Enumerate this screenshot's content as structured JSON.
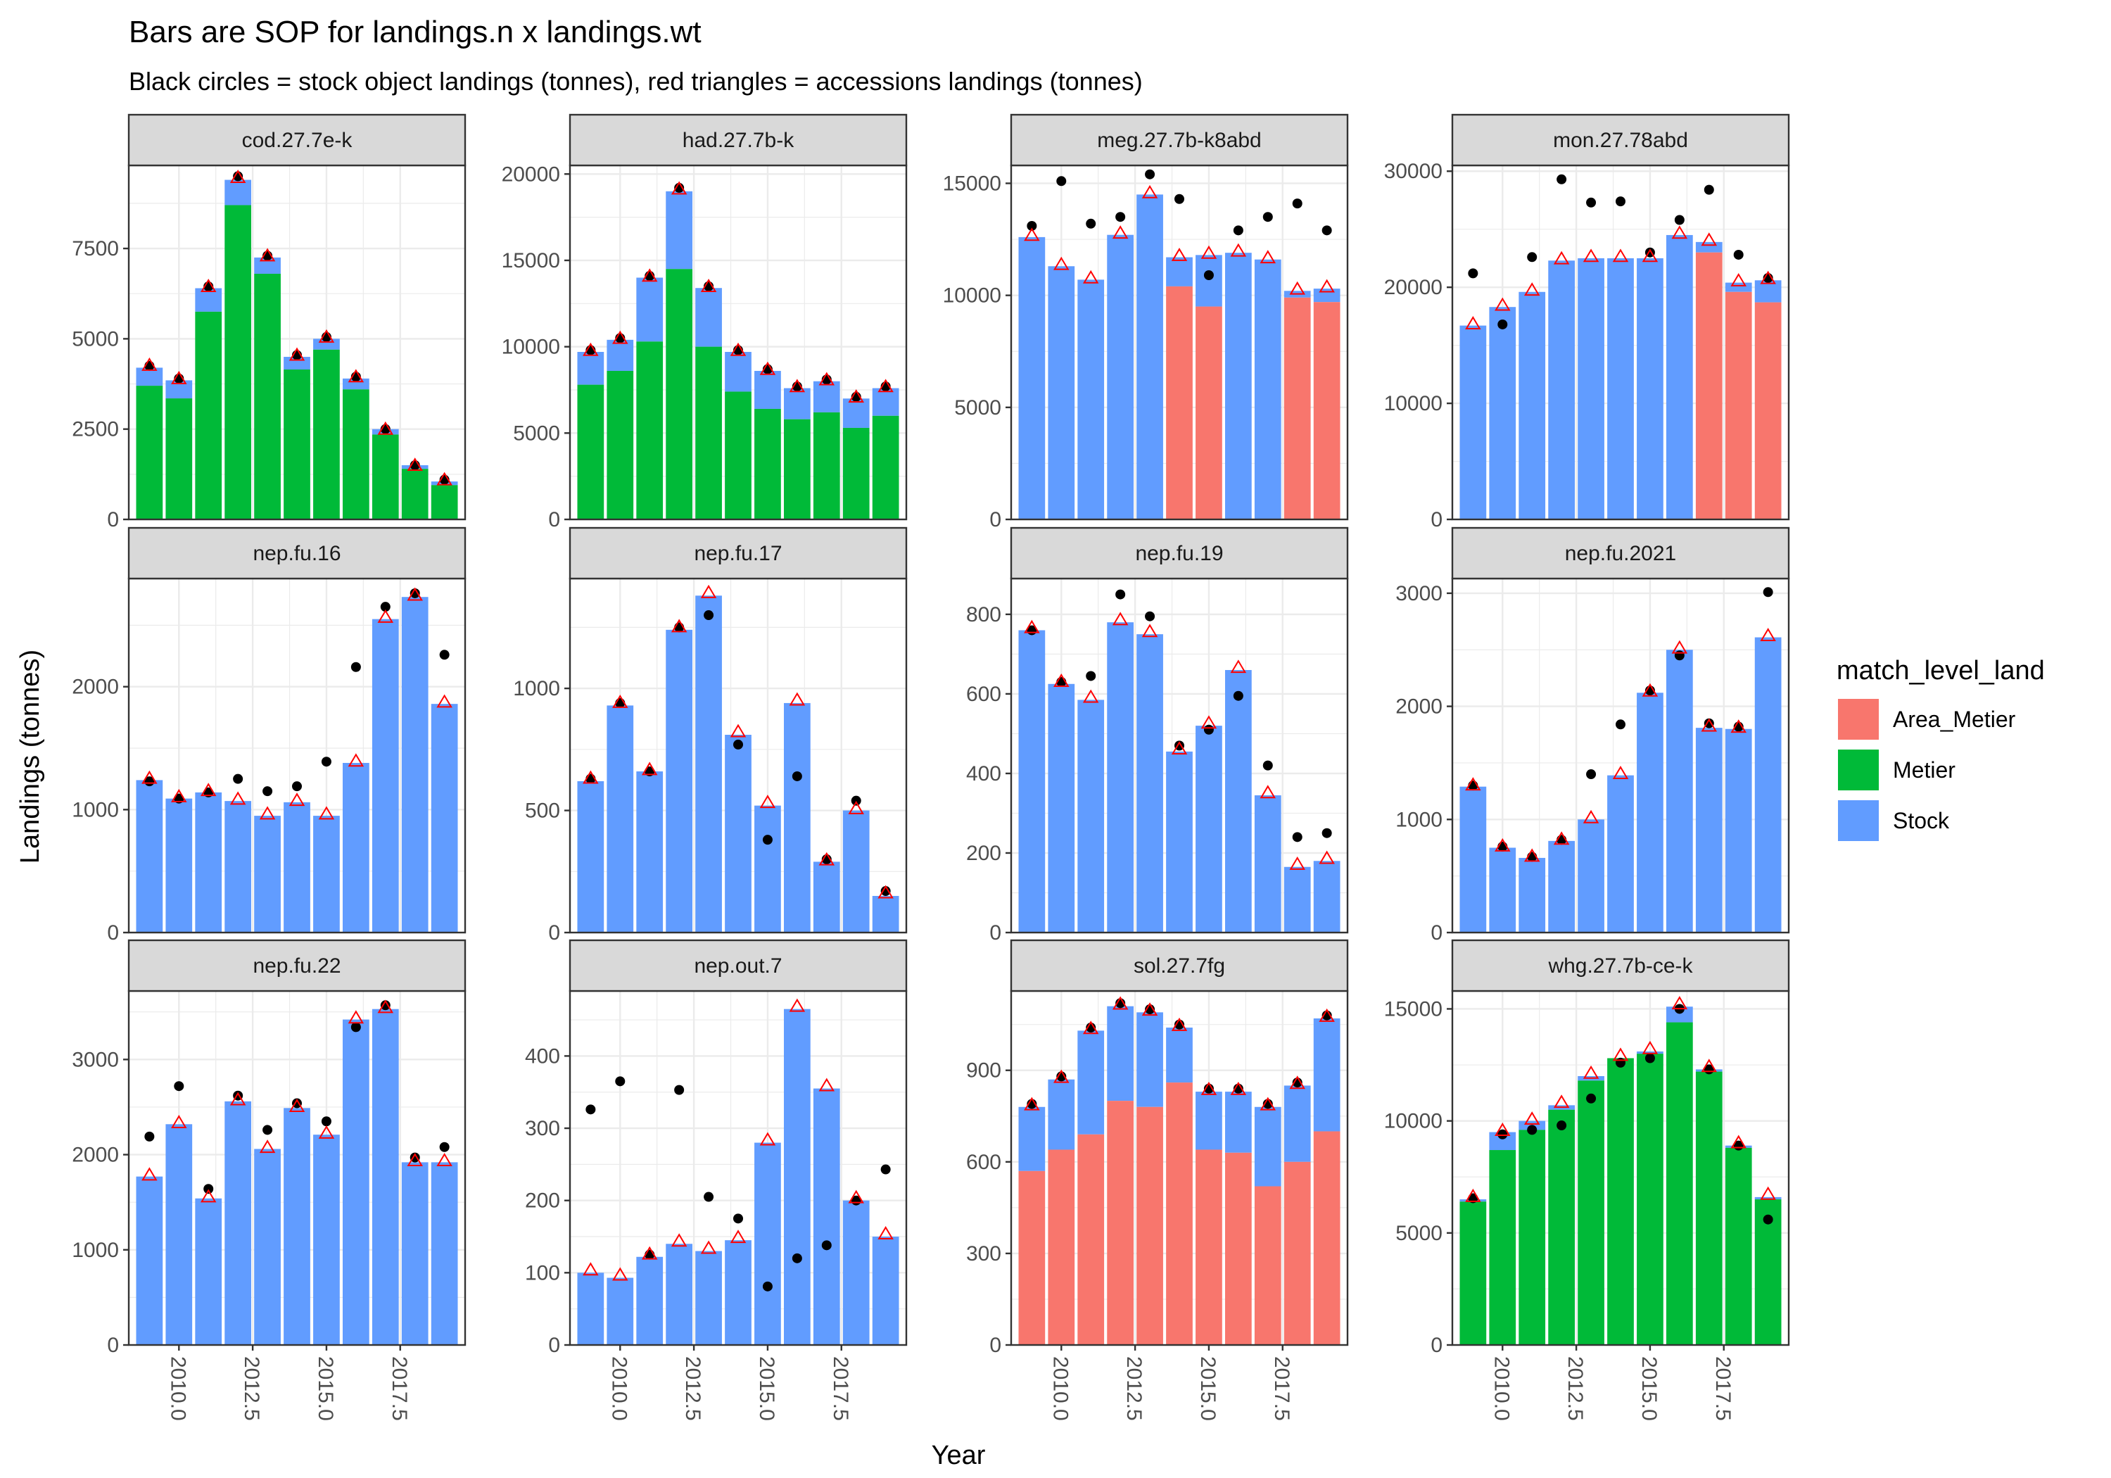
{
  "chart_data": {
    "type": "bar",
    "title": "Bars are SOP for landings.n x landings.wt",
    "subtitle": "Black circles = stock object landings (tonnes), red triangles = accessions landings (tonnes)",
    "xlabel": "Year",
    "ylabel": "Landings (tonnes)",
    "grid": true,
    "legend": {
      "title": "match_level_land",
      "placement": "right",
      "entries": [
        {
          "name": "Area_Metier",
          "color": "#F8766D"
        },
        {
          "name": "Metier",
          "color": "#00BA38"
        },
        {
          "name": "Stock",
          "color": "#619CFF"
        }
      ]
    },
    "x_tick_labels": [
      "2010.0",
      "2012.5",
      "2015.0",
      "2017.5"
    ],
    "x_ticks": [
      2010,
      2012.5,
      2015,
      2017.5
    ],
    "x_range": [
      2008.3,
      2019.7
    ],
    "years": [
      2009,
      2010,
      2011,
      2012,
      2013,
      2014,
      2015,
      2016,
      2017,
      2018,
      2019
    ],
    "colors": {
      "Area_Metier": "#F8766D",
      "Metier": "#00BA38",
      "Stock": "#619CFF",
      "circle": "#000000",
      "triangle": "#FF0000",
      "strip_bg": "#D9D9D9",
      "grid": "#EBEBEB"
    },
    "panels": [
      {
        "name": "cod.27.7e-k",
        "ylim": [
          0,
          9800
        ],
        "yticks": [
          0,
          2500,
          5000,
          7500
        ],
        "ytick_labels": [
          "0",
          "2500",
          "5000",
          "7500"
        ],
        "total": [
          4200,
          3850,
          6400,
          9400,
          7250,
          4500,
          5000,
          3900,
          2500,
          1500,
          1050
        ],
        "split_value": [
          3700,
          3350,
          5750,
          8700,
          6800,
          4150,
          4700,
          3600,
          2350,
          1400,
          950
        ],
        "split_type": "Metier",
        "circles": [
          4250,
          3900,
          6450,
          9500,
          7300,
          4550,
          5050,
          3950,
          2500,
          1500,
          1100
        ],
        "triangles": [
          4250,
          3880,
          6430,
          9450,
          7280,
          4530,
          5030,
          3930,
          2480,
          1480,
          1080
        ]
      },
      {
        "name": "had.27.7b-k",
        "ylim": [
          0,
          20500
        ],
        "yticks": [
          0,
          5000,
          10000,
          15000,
          20000
        ],
        "ytick_labels": [
          "0",
          "5000",
          "10000",
          "15000",
          "20000"
        ],
        "total": [
          9700,
          10400,
          14000,
          19000,
          13400,
          9700,
          8600,
          7600,
          8000,
          7000,
          7600
        ],
        "split_value": [
          7800,
          8600,
          10300,
          14500,
          10000,
          7400,
          6400,
          5800,
          6200,
          5300,
          6000
        ],
        "split_type": "Metier",
        "circles": [
          9800,
          10500,
          14100,
          19200,
          13500,
          9800,
          8700,
          7700,
          8100,
          7100,
          7700
        ],
        "triangles": [
          9750,
          10450,
          14050,
          19100,
          13450,
          9750,
          8650,
          7650,
          8050,
          7050,
          7650
        ]
      },
      {
        "name": "meg.27.7b-k8abd",
        "ylim": [
          0,
          15800
        ],
        "yticks": [
          0,
          5000,
          10000,
          15000
        ],
        "ytick_labels": [
          "0",
          "5000",
          "10000",
          "15000"
        ],
        "total": [
          12600,
          11300,
          10700,
          12700,
          14500,
          11700,
          11800,
          11900,
          11600,
          10200,
          10300
        ],
        "split_value": [
          0,
          0,
          0,
          0,
          0,
          10400,
          9500,
          0,
          0,
          9900,
          9700
        ],
        "split_type": "Area_Metier",
        "circles": [
          13100,
          15100,
          13200,
          13500,
          15400,
          14300,
          10900,
          12900,
          13500,
          14100,
          12900
        ],
        "triangles": [
          12650,
          11350,
          10750,
          12750,
          14550,
          11750,
          11850,
          11950,
          11650,
          10250,
          10350
        ]
      },
      {
        "name": "mon.27.78abd",
        "ylim": [
          0,
          30500
        ],
        "yticks": [
          0,
          10000,
          20000,
          30000
        ],
        "ytick_labels": [
          "0",
          "10000",
          "20000",
          "30000"
        ],
        "total": [
          16700,
          18300,
          19600,
          22300,
          22500,
          22500,
          22500,
          24500,
          23900,
          20400,
          20600
        ],
        "split_value": [
          0,
          0,
          0,
          0,
          0,
          0,
          0,
          0,
          23000,
          19600,
          18700
        ],
        "split_type": "Area_Metier",
        "circles": [
          21200,
          16800,
          22600,
          29300,
          27300,
          27400,
          23000,
          25800,
          28400,
          22800,
          20800
        ],
        "triangles": [
          16800,
          18400,
          19700,
          22400,
          22600,
          22600,
          22600,
          24600,
          24000,
          20500,
          20700
        ]
      },
      {
        "name": "nep.fu.16",
        "ylim": [
          0,
          2880
        ],
        "yticks": [
          0,
          1000,
          2000
        ],
        "ytick_labels": [
          "0",
          "1000",
          "2000"
        ],
        "total": [
          1240,
          1090,
          1140,
          1070,
          950,
          1060,
          950,
          1380,
          2550,
          2730,
          1860
        ],
        "split_value": [
          0,
          0,
          0,
          0,
          0,
          0,
          0,
          0,
          0,
          0,
          0
        ],
        "split_type": "Stock",
        "circles": [
          1230,
          1090,
          1140,
          1250,
          1150,
          1190,
          1390,
          2160,
          2650,
          2760,
          2260
        ],
        "triangles": [
          1250,
          1100,
          1150,
          1080,
          960,
          1070,
          960,
          1390,
          2560,
          2740,
          1870
        ]
      },
      {
        "name": "nep.fu.17",
        "ylim": [
          0,
          1450
        ],
        "yticks": [
          0,
          500,
          1000
        ],
        "ytick_labels": [
          "0",
          "500",
          "1000"
        ],
        "total": [
          620,
          930,
          660,
          1240,
          1380,
          810,
          520,
          940,
          290,
          500,
          150
        ],
        "split_value": [
          0,
          0,
          0,
          0,
          0,
          0,
          0,
          0,
          0,
          0,
          0
        ],
        "split_type": "Stock",
        "circles": [
          630,
          940,
          660,
          1250,
          1300,
          770,
          380,
          640,
          300,
          540,
          170
        ],
        "triangles": [
          630,
          940,
          665,
          1250,
          1390,
          820,
          530,
          950,
          295,
          505,
          160
        ]
      },
      {
        "name": "nep.fu.19",
        "ylim": [
          0,
          890
        ],
        "yticks": [
          0,
          200,
          400,
          600,
          800
        ],
        "ytick_labels": [
          "0",
          "200",
          "400",
          "600",
          "800"
        ],
        "total": [
          760,
          625,
          585,
          780,
          750,
          455,
          520,
          660,
          345,
          165,
          180
        ],
        "split_value": [
          0,
          0,
          0,
          0,
          0,
          0,
          0,
          0,
          0,
          0,
          0
        ],
        "split_type": "Stock",
        "circles": [
          760,
          630,
          645,
          850,
          795,
          470,
          510,
          595,
          420,
          240,
          250
        ],
        "triangles": [
          765,
          630,
          590,
          785,
          755,
          460,
          525,
          665,
          350,
          170,
          185
        ]
      },
      {
        "name": "nep.fu.2021",
        "ylim": [
          0,
          3130
        ],
        "yticks": [
          0,
          1000,
          2000,
          3000
        ],
        "ytick_labels": [
          "0",
          "1000",
          "2000",
          "3000"
        ],
        "total": [
          1290,
          750,
          660,
          810,
          1000,
          1390,
          2120,
          2500,
          1810,
          1800,
          2610
        ],
        "split_value": [
          0,
          0,
          0,
          0,
          0,
          0,
          0,
          0,
          0,
          0,
          0
        ],
        "split_type": "Stock",
        "circles": [
          1300,
          760,
          670,
          820,
          1400,
          1840,
          2140,
          2450,
          1850,
          1820,
          3010
        ],
        "triangles": [
          1300,
          760,
          670,
          820,
          1010,
          1400,
          2130,
          2510,
          1820,
          1810,
          2620
        ]
      },
      {
        "name": "nep.fu.22",
        "ylim": [
          0,
          3720
        ],
        "yticks": [
          0,
          1000,
          2000,
          3000
        ],
        "ytick_labels": [
          "0",
          "1000",
          "2000",
          "3000"
        ],
        "total": [
          1770,
          2320,
          1540,
          2560,
          2060,
          2490,
          2210,
          3420,
          3530,
          1920,
          1920
        ],
        "split_value": [
          0,
          0,
          0,
          0,
          0,
          0,
          0,
          0,
          0,
          0,
          0
        ],
        "split_type": "Stock",
        "circles": [
          2190,
          2720,
          1640,
          2620,
          2260,
          2540,
          2350,
          3340,
          3570,
          1970,
          2080
        ],
        "triangles": [
          1780,
          2330,
          1550,
          2570,
          2070,
          2500,
          2220,
          3430,
          3540,
          1930,
          1930
        ]
      },
      {
        "name": "nep.out.7",
        "ylim": [
          0,
          490
        ],
        "yticks": [
          0,
          100,
          200,
          300,
          400
        ],
        "ytick_labels": [
          "0",
          "100",
          "200",
          "300",
          "400"
        ],
        "total": [
          100,
          93,
          122,
          140,
          130,
          145,
          280,
          465,
          355,
          200,
          150
        ],
        "split_value": [
          0,
          0,
          0,
          0,
          0,
          0,
          0,
          0,
          0,
          0,
          0
        ],
        "split_type": "Stock",
        "circles": [
          326,
          365,
          125,
          353,
          205,
          175,
          81,
          120,
          138,
          200,
          243
        ],
        "triangles": [
          103,
          96,
          125,
          143,
          133,
          148,
          283,
          468,
          358,
          203,
          153
        ]
      },
      {
        "name": "sol.27.7fg",
        "ylim": [
          0,
          1160
        ],
        "yticks": [
          0,
          300,
          600,
          900
        ],
        "ytick_labels": [
          "0",
          "300",
          "600",
          "900"
        ],
        "total": [
          780,
          870,
          1030,
          1110,
          1090,
          1040,
          830,
          830,
          780,
          850,
          1070
        ],
        "split_value": [
          570,
          640,
          690,
          800,
          780,
          860,
          640,
          630,
          520,
          600,
          700
        ],
        "split_type": "Area_Metier",
        "circles": [
          790,
          880,
          1040,
          1120,
          1100,
          1050,
          840,
          840,
          790,
          860,
          1080
        ],
        "triangles": [
          785,
          875,
          1035,
          1115,
          1095,
          1045,
          835,
          835,
          785,
          855,
          1075
        ]
      },
      {
        "name": "whg.27.7b-ce-k",
        "ylim": [
          0,
          15800
        ],
        "yticks": [
          0,
          5000,
          10000,
          15000
        ],
        "ytick_labels": [
          "0",
          "5000",
          "10000",
          "15000"
        ],
        "total": [
          6500,
          9500,
          10000,
          10700,
          12000,
          12800,
          13100,
          15100,
          12300,
          8900,
          6600
        ],
        "split_value": [
          6400,
          8700,
          9600,
          10500,
          11800,
          12800,
          13000,
          14400,
          12200,
          8800,
          6500
        ],
        "split_type": "Metier",
        "circles": [
          6550,
          9400,
          9600,
          9800,
          11000,
          12600,
          12800,
          15000,
          12300,
          8900,
          5600
        ],
        "triangles": [
          6600,
          9550,
          10050,
          10800,
          12100,
          12900,
          13200,
          15200,
          12400,
          9000,
          6700
        ]
      }
    ]
  }
}
